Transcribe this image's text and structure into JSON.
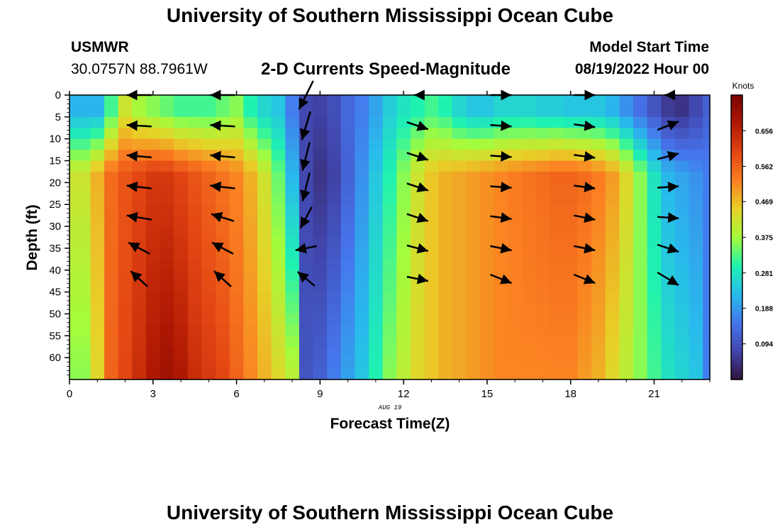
{
  "page": {
    "title": "University of Southern Mississippi Ocean Cube",
    "station": "USMWR",
    "coordinates": "30.0757N  88.7961W",
    "model_start_label": "Model Start Time",
    "model_start_value": "08/19/2022 Hour 00",
    "bottom_title": "University of Southern Mississippi Ocean Cube"
  },
  "chart_data": {
    "type": "heatmap",
    "title": "2-D Currents Speed-Magnitude",
    "xlabel": "Forecast Time(Z)",
    "ylabel": "Depth (ft)",
    "date_label": "AUG 19",
    "colorbar_label": "Knots",
    "x_ticks": [
      0,
      3,
      6,
      9,
      12,
      15,
      18,
      21
    ],
    "y_ticks": [
      0,
      5,
      10,
      15,
      20,
      25,
      30,
      35,
      40,
      45,
      50,
      55,
      60
    ],
    "xlim": [
      0,
      23
    ],
    "ylim": [
      65,
      0
    ],
    "colorbar_ticks": [
      "0.094",
      "0.188",
      "0.281",
      "0.375",
      "0.469",
      "0.562",
      "0.656"
    ],
    "colorbar_range": [
      0.0,
      0.75
    ],
    "grid": false,
    "time_columns": [
      0,
      0.75,
      1.25,
      1.75,
      2.25,
      2.75,
      3.25,
      3.75,
      4.25,
      4.75,
      5.25,
      5.75,
      6.25,
      6.75,
      7.25,
      7.75,
      8.25,
      8.75,
      9.25,
      9.75,
      10.25,
      10.75,
      11.25,
      11.75,
      12.25,
      12.75,
      13.25,
      13.75,
      14.25,
      14.75,
      15.25,
      15.75,
      16.25,
      16.75,
      17.25,
      17.75,
      18.25,
      18.75,
      19.25,
      19.75,
      20.25,
      20.75,
      21.25,
      21.75,
      22.25,
      22.75,
      23
    ],
    "speed_profile_columns": {
      "surface": [
        0.22,
        0.22,
        0.32,
        0.42,
        0.38,
        0.36,
        0.34,
        0.32,
        0.32,
        0.32,
        0.34,
        0.36,
        0.3,
        0.26,
        0.24,
        0.16,
        0.08,
        0.07,
        0.09,
        0.13,
        0.16,
        0.2,
        0.25,
        0.28,
        0.3,
        0.32,
        0.3,
        0.26,
        0.24,
        0.24,
        0.26,
        0.26,
        0.26,
        0.25,
        0.25,
        0.24,
        0.24,
        0.24,
        0.22,
        0.18,
        0.14,
        0.1,
        0.06,
        0.05,
        0.08,
        0.12,
        0.16
      ],
      "mid": [
        0.42,
        0.48,
        0.55,
        0.58,
        0.6,
        0.62,
        0.62,
        0.6,
        0.58,
        0.56,
        0.54,
        0.52,
        0.48,
        0.42,
        0.34,
        0.22,
        0.08,
        0.05,
        0.07,
        0.12,
        0.18,
        0.24,
        0.3,
        0.36,
        0.42,
        0.46,
        0.48,
        0.49,
        0.5,
        0.51,
        0.52,
        0.53,
        0.54,
        0.55,
        0.56,
        0.56,
        0.55,
        0.53,
        0.5,
        0.44,
        0.36,
        0.28,
        0.22,
        0.2,
        0.18,
        0.16,
        0.15
      ],
      "bottom": [
        0.36,
        0.44,
        0.56,
        0.6,
        0.64,
        0.68,
        0.7,
        0.68,
        0.64,
        0.62,
        0.6,
        0.56,
        0.52,
        0.48,
        0.44,
        0.4,
        0.1,
        0.12,
        0.16,
        0.2,
        0.24,
        0.3,
        0.36,
        0.4,
        0.44,
        0.46,
        0.48,
        0.49,
        0.5,
        0.51,
        0.52,
        0.52,
        0.52,
        0.52,
        0.52,
        0.52,
        0.5,
        0.48,
        0.44,
        0.4,
        0.36,
        0.32,
        0.28,
        0.26,
        0.24,
        0.16,
        0.12
      ]
    },
    "vector_times": [
      2.5,
      5.5,
      8.5,
      12.5,
      15.5,
      18.5,
      21.5
    ],
    "vector_depths": [
      0,
      7,
      14,
      21,
      28,
      35,
      42
    ],
    "vectors": [
      [
        [
          -35,
          0
        ],
        [
          -35,
          -2
        ],
        [
          -35,
          -3
        ],
        [
          -35,
          -4
        ],
        [
          -35,
          -6
        ],
        [
          -30,
          -16
        ],
        [
          -24,
          -22
        ]
      ],
      [
        [
          -35,
          0
        ],
        [
          -35,
          -2
        ],
        [
          -35,
          -3
        ],
        [
          -35,
          -4
        ],
        [
          -32,
          -10
        ],
        [
          -30,
          -16
        ],
        [
          -24,
          -22
        ]
      ],
      [
        [
          -20,
          40
        ],
        [
          -12,
          40
        ],
        [
          -10,
          40
        ],
        [
          -10,
          40
        ],
        [
          -16,
          30
        ],
        [
          -30,
          6
        ],
        [
          -24,
          -20
        ]
      ],
      [
        [
          -10,
          0
        ],
        [
          30,
          10
        ],
        [
          30,
          10
        ],
        [
          30,
          10
        ],
        [
          30,
          10
        ],
        [
          30,
          8
        ],
        [
          30,
          6
        ]
      ],
      [
        [
          30,
          0
        ],
        [
          30,
          2
        ],
        [
          30,
          2
        ],
        [
          30,
          2
        ],
        [
          30,
          4
        ],
        [
          30,
          6
        ],
        [
          30,
          12
        ]
      ],
      [
        [
          30,
          0
        ],
        [
          30,
          4
        ],
        [
          30,
          4
        ],
        [
          30,
          4
        ],
        [
          30,
          6
        ],
        [
          30,
          6
        ],
        [
          30,
          12
        ]
      ],
      [
        [
          -10,
          0
        ],
        [
          30,
          -12
        ],
        [
          30,
          -8
        ],
        [
          30,
          -2
        ],
        [
          30,
          2
        ],
        [
          30,
          10
        ],
        [
          30,
          18
        ]
      ]
    ]
  }
}
